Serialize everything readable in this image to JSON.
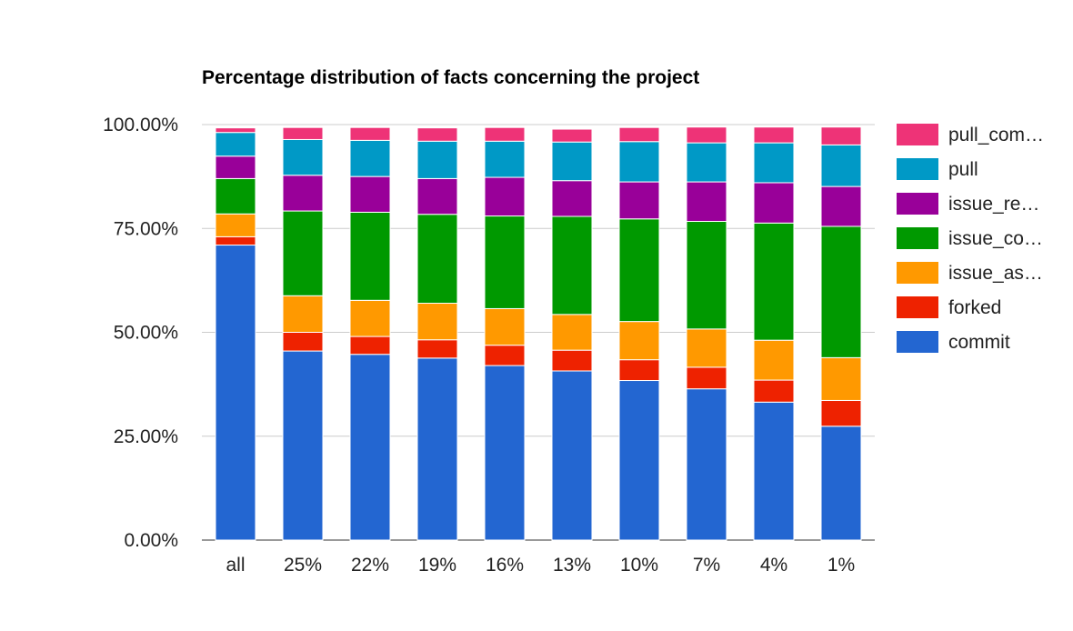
{
  "chart_data": {
    "type": "bar",
    "stacked": true,
    "title": "Percentage distribution of facts concerning the project",
    "xlabel": "",
    "ylabel": "",
    "ylim": [
      0,
      100
    ],
    "yticks": [
      "0.00%",
      "25.00%",
      "50.00%",
      "75.00%",
      "100.00%"
    ],
    "ytick_values": [
      0,
      25,
      50,
      75,
      100
    ],
    "grid": true,
    "legend_position": "right",
    "categories": [
      "all",
      "25%",
      "22%",
      "19%",
      "16%",
      "13%",
      "10%",
      "7%",
      "4%",
      "1%"
    ],
    "series": [
      {
        "name": "commit",
        "color": "#2366d1",
        "values": [
          71.0,
          45.5,
          44.7,
          43.8,
          42.0,
          40.7,
          38.4,
          36.4,
          33.2,
          27.4
        ]
      },
      {
        "name": "forked",
        "color": "#ee2200",
        "values": [
          2.0,
          4.5,
          4.3,
          4.4,
          4.9,
          5.0,
          5.0,
          5.2,
          5.3,
          6.2
        ]
      },
      {
        "name": "issue_as…",
        "color": "#ff9900",
        "values": [
          5.5,
          8.8,
          8.7,
          8.8,
          8.8,
          8.6,
          9.2,
          9.2,
          9.6,
          10.3
        ]
      },
      {
        "name": "issue_co…",
        "color": "#009900",
        "values": [
          8.5,
          20.4,
          21.2,
          21.4,
          22.3,
          23.6,
          24.7,
          25.9,
          28.2,
          31.6
        ]
      },
      {
        "name": "issue_re…",
        "color": "#990099",
        "values": [
          5.4,
          8.6,
          8.6,
          8.6,
          9.3,
          8.6,
          8.9,
          9.5,
          9.7,
          9.6
        ]
      },
      {
        "name": "pull",
        "color": "#0099c6",
        "values": [
          5.7,
          8.6,
          8.7,
          9.0,
          8.7,
          9.3,
          9.7,
          9.4,
          9.6,
          10.0
        ]
      },
      {
        "name": "pull_com…",
        "color": "#ee3377",
        "values": [
          1.1,
          2.9,
          3.1,
          3.2,
          3.3,
          3.1,
          3.4,
          3.8,
          3.8,
          4.3
        ]
      }
    ]
  }
}
